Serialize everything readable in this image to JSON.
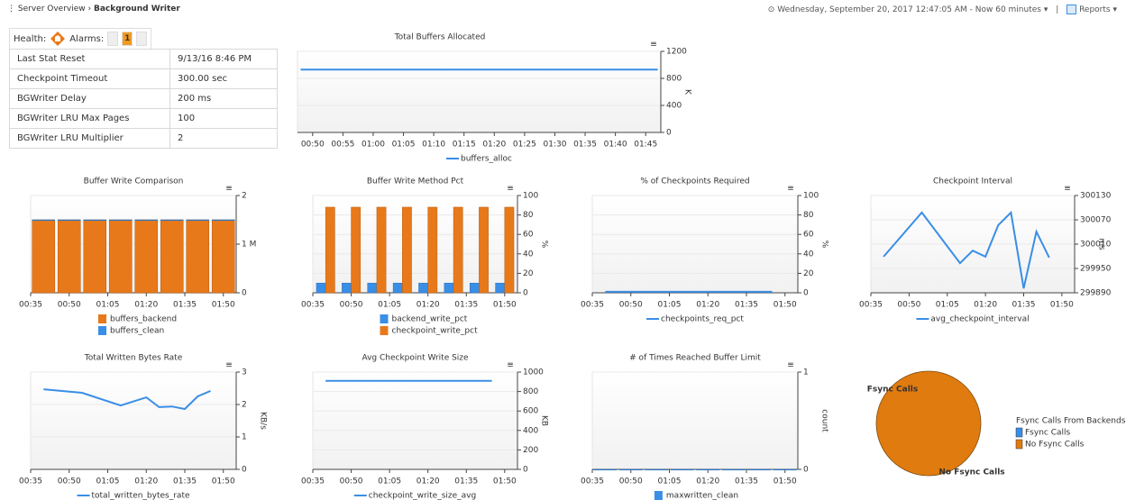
{
  "breadcrumb": {
    "parent": "Server Overview",
    "current": "Background Writer"
  },
  "time_range": "Wednesday, September 20, 2017 12:47:05 AM - Now 60 minutes",
  "reports": "Reports",
  "health": {
    "health_label": "Health:",
    "alarms_label": "Alarms:",
    "alarm_count": "1"
  },
  "stats": {
    "rows": [
      [
        "Last Stat Reset",
        "9/13/16 8:46 PM"
      ],
      [
        "Checkpoint Timeout",
        "300.00 sec"
      ],
      [
        "BGWriter Delay",
        "200 ms"
      ],
      [
        "BGWriter LRU Max Pages",
        "100"
      ],
      [
        "BGWriter LRU Multiplier",
        "2"
      ]
    ]
  },
  "chart_data": [
    {
      "type": "line",
      "title": "Total Buffers Allocated",
      "y_label": "K",
      "x": [
        48,
        107
      ],
      "xlim": [
        47.5,
        107.5
      ],
      "xticks": [
        {
          "value": 50,
          "label": "00:50"
        },
        {
          "value": 55,
          "label": "00:55"
        },
        {
          "value": 60,
          "label": "01:00"
        },
        {
          "value": 65,
          "label": "01:05"
        },
        {
          "value": 70,
          "label": "01:10"
        },
        {
          "value": 75,
          "label": "01:15"
        },
        {
          "value": 80,
          "label": "01:20"
        },
        {
          "value": 85,
          "label": "01:25"
        },
        {
          "value": 90,
          "label": "01:30"
        },
        {
          "value": 95,
          "label": "01:35"
        },
        {
          "value": 100,
          "label": "01:40"
        },
        {
          "value": 105,
          "label": "01:45"
        }
      ],
      "ylim": [
        0,
        1200
      ],
      "yticks": [
        0,
        400,
        800,
        1200
      ],
      "grid": true,
      "series": [
        {
          "name": "buffers_alloc",
          "color": "#3a8ee6",
          "values": [
            930,
            930
          ]
        }
      ]
    },
    {
      "type": "bar",
      "stacked": true,
      "title": "Buffer Write Comparison",
      "x": [
        40,
        50,
        60,
        70,
        80,
        90,
        100,
        110
      ],
      "xlim": [
        35,
        115
      ],
      "xticks": [
        {
          "value": 35,
          "label": "00:35"
        },
        {
          "value": 50,
          "label": "00:50"
        },
        {
          "value": 65,
          "label": "01:05"
        },
        {
          "value": 80,
          "label": "01:20"
        },
        {
          "value": 95,
          "label": "01:35"
        },
        {
          "value": 110,
          "label": "01:50"
        }
      ],
      "ylim": [
        0,
        2000000
      ],
      "yticks": [
        0,
        {
          "value": 1000000,
          "label": "1 M"
        },
        {
          "value": 2000000,
          "label": "2"
        }
      ],
      "grid": true,
      "series": [
        {
          "name": "buffers_backend",
          "color": "#e8791a",
          "values": [
            1500000,
            1500000,
            1500000,
            1500000,
            1500000,
            1500000,
            1500000,
            1500000
          ]
        },
        {
          "name": "buffers_clean",
          "color": "#3a8ee6",
          "values": [
            0,
            0,
            0,
            0,
            0,
            0,
            0,
            0
          ]
        }
      ]
    },
    {
      "type": "bar",
      "stacked": false,
      "title": "Buffer Write Method Pct",
      "y_label": "%",
      "x": [
        40,
        50,
        60,
        70,
        80,
        90,
        100,
        110
      ],
      "xlim": [
        35,
        115
      ],
      "xticks": [
        {
          "value": 35,
          "label": "00:35"
        },
        {
          "value": 50,
          "label": "00:50"
        },
        {
          "value": 65,
          "label": "01:05"
        },
        {
          "value": 80,
          "label": "01:20"
        },
        {
          "value": 95,
          "label": "01:35"
        },
        {
          "value": 110,
          "label": "01:50"
        }
      ],
      "ylim": [
        0,
        100
      ],
      "yticks": [
        0,
        20,
        40,
        60,
        80,
        100
      ],
      "grid": true,
      "series": [
        {
          "name": "backend_write_pct",
          "color": "#3a8ee6",
          "values": [
            10,
            10,
            10,
            10,
            10,
            10,
            10,
            10
          ]
        },
        {
          "name": "checkpoint_write_pct",
          "color": "#e8791a",
          "values": [
            88,
            88,
            88,
            88,
            88,
            88,
            88,
            88
          ]
        }
      ]
    },
    {
      "type": "line",
      "title": "% of Checkpoints Required",
      "y_label": "%",
      "x": [
        40,
        45,
        50,
        55,
        60,
        65,
        70,
        75,
        80,
        85,
        90,
        95,
        100,
        105
      ],
      "xlim": [
        35,
        115
      ],
      "xticks": [
        {
          "value": 35,
          "label": "00:35"
        },
        {
          "value": 50,
          "label": "00:50"
        },
        {
          "value": 65,
          "label": "01:05"
        },
        {
          "value": 80,
          "label": "01:20"
        },
        {
          "value": 95,
          "label": "01:35"
        },
        {
          "value": 110,
          "label": "01:50"
        }
      ],
      "ylim": [
        0,
        100
      ],
      "yticks": [
        0,
        20,
        40,
        60,
        80,
        100
      ],
      "grid": true,
      "series": [
        {
          "name": "checkpoints_req_pct",
          "color": "#3a8ee6",
          "values": [
            1,
            1,
            1,
            1,
            1,
            1,
            1,
            1,
            1,
            1,
            1,
            1,
            1,
            1
          ]
        }
      ]
    },
    {
      "type": "line",
      "title": "Checkpoint Interval",
      "y_label": "ms",
      "x": [
        40,
        55,
        70,
        75,
        80,
        85,
        90,
        95,
        100,
        105
      ],
      "xlim": [
        35,
        115
      ],
      "xticks": [
        {
          "value": 35,
          "label": "00:35"
        },
        {
          "value": 50,
          "label": "00:50"
        },
        {
          "value": 65,
          "label": "01:05"
        },
        {
          "value": 80,
          "label": "01:20"
        },
        {
          "value": 95,
          "label": "01:35"
        },
        {
          "value": 110,
          "label": "01:50"
        }
      ],
      "ylim": [
        299890,
        300130
      ],
      "yticks": [
        299890,
        299950,
        300010,
        300070,
        300130
      ],
      "grid": true,
      "series": [
        {
          "name": "avg_checkpoint_interval",
          "color": "#3a8ee6",
          "values": [
            299979,
            300088,
            299963,
            299994,
            299979,
            300057,
            300088,
            299901,
            300041,
            299977
          ]
        }
      ]
    },
    {
      "type": "line",
      "title": "Total Written Bytes Rate",
      "y_label": "KB/s",
      "x": [
        40,
        55,
        70,
        80,
        85,
        90,
        95,
        100,
        105
      ],
      "xlim": [
        35,
        115
      ],
      "xticks": [
        {
          "value": 35,
          "label": "00:35"
        },
        {
          "value": 50,
          "label": "00:50"
        },
        {
          "value": 65,
          "label": "01:05"
        },
        {
          "value": 80,
          "label": "01:20"
        },
        {
          "value": 95,
          "label": "01:35"
        },
        {
          "value": 110,
          "label": "01:50"
        }
      ],
      "ylim": [
        0,
        3
      ],
      "yticks": [
        0,
        1,
        2,
        3
      ],
      "grid": true,
      "series": [
        {
          "name": "total_written_bytes_rate",
          "color": "#3a8ee6",
          "values": [
            2.47,
            2.36,
            1.97,
            2.22,
            1.92,
            1.94,
            1.86,
            2.25,
            2.42
          ]
        }
      ]
    },
    {
      "type": "line",
      "title": "Avg Checkpoint Write Size",
      "y_label": "KB",
      "x": [
        40,
        45,
        50,
        55,
        60,
        65,
        70,
        75,
        80,
        85,
        90,
        95,
        100,
        105
      ],
      "xlim": [
        35,
        115
      ],
      "xticks": [
        {
          "value": 35,
          "label": "00:35"
        },
        {
          "value": 50,
          "label": "00:50"
        },
        {
          "value": 65,
          "label": "01:05"
        },
        {
          "value": 80,
          "label": "01:20"
        },
        {
          "value": 95,
          "label": "01:35"
        },
        {
          "value": 110,
          "label": "01:50"
        }
      ],
      "ylim": [
        0,
        1000
      ],
      "yticks": [
        0,
        200,
        400,
        600,
        800,
        1000
      ],
      "grid": true,
      "series": [
        {
          "name": "checkpoint_write_size_avg",
          "color": "#3a8ee6",
          "values": [
            910,
            910,
            910,
            910,
            910,
            910,
            910,
            910,
            910,
            910,
            910,
            910,
            910,
            910
          ]
        }
      ]
    },
    {
      "type": "bar",
      "stacked": true,
      "title": "# of Times Reached Buffer Limit",
      "y_label": "count",
      "x": [
        40,
        50,
        60,
        70,
        80,
        90,
        100,
        110
      ],
      "xlim": [
        35,
        115
      ],
      "xticks": [
        {
          "value": 35,
          "label": "00:35"
        },
        {
          "value": 50,
          "label": "00:50"
        },
        {
          "value": 65,
          "label": "01:05"
        },
        {
          "value": 80,
          "label": "01:20"
        },
        {
          "value": 95,
          "label": "01:35"
        },
        {
          "value": 110,
          "label": "01:50"
        }
      ],
      "ylim": [
        0,
        1
      ],
      "yticks": [
        0,
        1
      ],
      "grid": true,
      "series": [
        {
          "name": "maxwritten_clean",
          "color": "#3a8ee6",
          "values": [
            0,
            0,
            0,
            0,
            0,
            0,
            0,
            0
          ]
        }
      ]
    },
    {
      "type": "pie",
      "legend_title": "Fsync Calls From Backends",
      "labels": [
        "Fsync Calls",
        "No Fsync Calls"
      ],
      "values": [
        0,
        100
      ],
      "colors": [
        "#3a8ee6",
        "#e07b10"
      ]
    }
  ]
}
